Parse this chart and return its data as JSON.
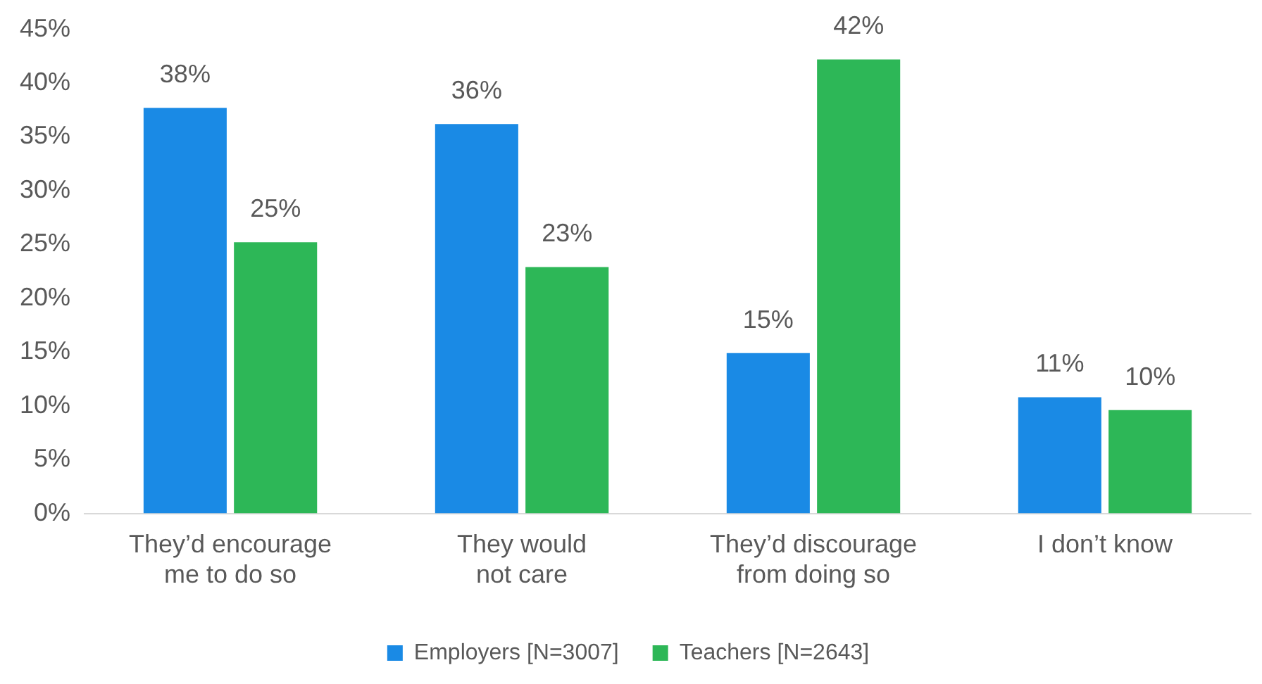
{
  "chart_data": {
    "type": "bar",
    "categories": [
      "They’d encourage\nme to do so",
      "They would\nnot care",
      "They’d discourage\nfrom doing so",
      "I don’t know"
    ],
    "series": [
      {
        "name": "Employers [N=3007]",
        "color": "#1a8ae5",
        "values": [
          37.7,
          36.2,
          14.9,
          10.8
        ],
        "value_labels": [
          "38%",
          "36%",
          "15%",
          "11%"
        ]
      },
      {
        "name": "Teachers [N=2643]",
        "color": "#2db757",
        "values": [
          25.2,
          22.9,
          42.2,
          9.6
        ],
        "value_labels": [
          "25%",
          "23%",
          "42%",
          "10%"
        ]
      }
    ],
    "ylim": [
      0,
      45
    ],
    "yticks": [
      {
        "value": 0,
        "label": "0%"
      },
      {
        "value": 5,
        "label": "5%"
      },
      {
        "value": 10,
        "label": "10%"
      },
      {
        "value": 15,
        "label": "15%"
      },
      {
        "value": 20,
        "label": "20%"
      },
      {
        "value": 25,
        "label": "25%"
      },
      {
        "value": 30,
        "label": "30%"
      },
      {
        "value": 35,
        "label": "35%"
      },
      {
        "value": 40,
        "label": "40%"
      },
      {
        "value": 45,
        "label": "45%"
      }
    ],
    "grid": false,
    "legend": "bottom"
  }
}
